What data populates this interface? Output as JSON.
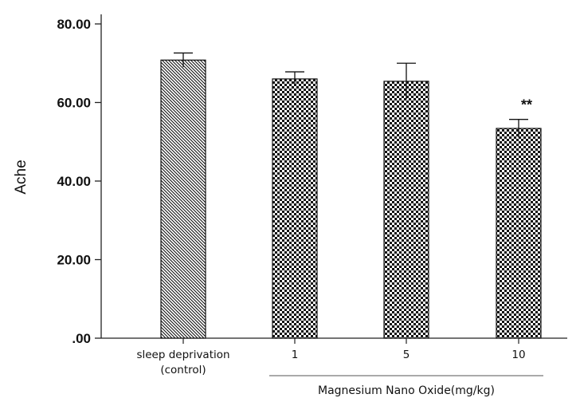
{
  "chart_data": {
    "type": "bar",
    "ylabel": "Ache",
    "ylim": [
      0,
      80
    ],
    "ytick_labels": [
      ".00",
      "20.00",
      "40.00",
      "60.00",
      "80.00"
    ],
    "yticks": [
      0,
      20,
      40,
      60,
      80
    ],
    "categories": [
      [
        "sleep deprivation",
        "(control)"
      ],
      [
        "1"
      ],
      [
        "5"
      ],
      [
        "10"
      ]
    ],
    "values": [
      70.8,
      66.0,
      65.4,
      53.4
    ],
    "errors": [
      1.8,
      1.8,
      4.6,
      2.3
    ],
    "patterns": [
      "diagonal",
      "checker",
      "checker",
      "checker"
    ],
    "group_label": "Magnesium Nano Oxide(mg/kg)",
    "group_span": [
      1,
      3
    ],
    "annotations": [
      {
        "category_index": 3,
        "text": "**"
      }
    ],
    "grid": false,
    "legend": false
  }
}
